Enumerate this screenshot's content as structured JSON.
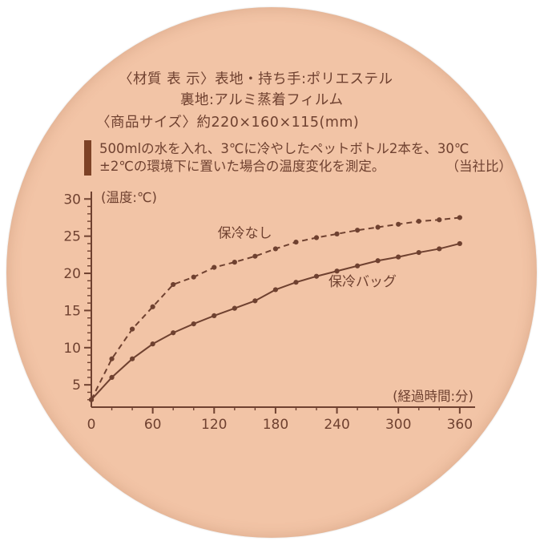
{
  "colors": {
    "ink": "#6f4130",
    "circle_bg": "#f2c4a6",
    "note_bar": "#7d4226"
  },
  "header": {
    "line1": "〈材質 表 示〉表地・持ち手:ポリエステル",
    "line2": "裏地:アルミ蒸着フィルム",
    "line3": "〈商品サイズ〉約220×160×115(mm)"
  },
  "note": {
    "line1": "500mlの水を入れ、3℃に冷やしたペットボトル2本を、30℃",
    "line2": "±2℃の環境下に置いた場合の温度変化を測定。",
    "line2_right": "（当社比）"
  },
  "chart_data": {
    "type": "line",
    "title": "",
    "ylabel": "(温度:℃)",
    "xlabel": "(経過時間:分)",
    "xlim": [
      0,
      375
    ],
    "ylim": [
      2,
      31
    ],
    "x_ticks_major": [
      0,
      60,
      120,
      180,
      240,
      300,
      360
    ],
    "x_minor_step": 20,
    "y_ticks_major": [
      5,
      10,
      15,
      20,
      25,
      30
    ],
    "y_minor_step": 1,
    "grid": false,
    "legend_position": "inline",
    "x": [
      0,
      20,
      40,
      60,
      80,
      100,
      120,
      140,
      160,
      180,
      200,
      220,
      240,
      260,
      280,
      300,
      320,
      340,
      360
    ],
    "series": [
      {
        "name": "保冷なし",
        "style": "dashed",
        "values": [
          3,
          8.5,
          12.5,
          15.5,
          18.5,
          19.5,
          20.8,
          21.5,
          22.3,
          23.3,
          24.2,
          24.8,
          25.3,
          25.8,
          26.2,
          26.6,
          27.0,
          27.2,
          27.5
        ]
      },
      {
        "name": "保冷バッグ",
        "style": "solid",
        "values": [
          3,
          6,
          8.5,
          10.5,
          12,
          13.2,
          14.3,
          15.3,
          16.3,
          17.8,
          18.8,
          19.6,
          20.3,
          21.0,
          21.7,
          22.2,
          22.8,
          23.3,
          24.0
        ]
      }
    ],
    "annotations": [
      {
        "text": "保冷なし",
        "x": 150,
        "y": 24.8
      },
      {
        "text": "保冷バッグ",
        "x": 265,
        "y": 18.3
      }
    ]
  }
}
